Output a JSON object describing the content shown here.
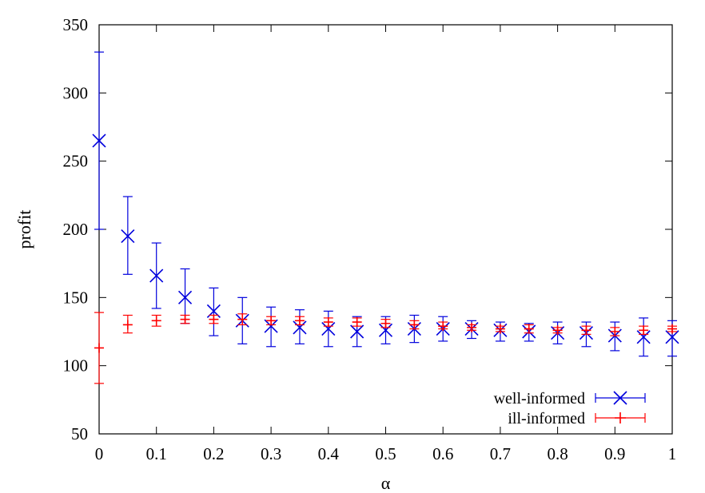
{
  "chart_data": {
    "type": "scatter",
    "title": "",
    "xlabel": "α",
    "ylabel": "profit",
    "xlim": [
      0,
      1
    ],
    "ylim": [
      50,
      350
    ],
    "xticks": [
      0,
      0.1,
      0.2,
      0.3,
      0.4,
      0.5,
      0.6,
      0.7,
      0.8,
      0.9,
      1
    ],
    "xtick_labels": [
      "0",
      "0.1",
      "0.2",
      "0.3",
      "0.4",
      "0.5",
      "0.6",
      "0.7",
      "0.8",
      "0.9",
      "1"
    ],
    "yticks": [
      50,
      100,
      150,
      200,
      250,
      300,
      350
    ],
    "ytick_labels": [
      "50",
      "100",
      "150",
      "200",
      "250",
      "300",
      "350"
    ],
    "grid": false,
    "legend_position": "bottom-right",
    "error_bars": true,
    "series": [
      {
        "name": "well-informed",
        "color": "#0000dd",
        "marker": "x",
        "x": [
          0,
          0.05,
          0.1,
          0.15,
          0.2,
          0.25,
          0.3,
          0.35,
          0.4,
          0.45,
          0.5,
          0.55,
          0.6,
          0.65,
          0.7,
          0.75,
          0.8,
          0.85,
          0.9,
          0.95,
          1
        ],
        "y": [
          265,
          195,
          166,
          150,
          140,
          133,
          129,
          128,
          127,
          125,
          126,
          127,
          127,
          127,
          126,
          125,
          124,
          124,
          122,
          121,
          121
        ],
        "err_low": [
          200,
          167,
          142,
          131,
          122,
          116,
          114,
          116,
          114,
          114,
          116,
          117,
          118,
          120,
          118,
          118,
          116,
          114,
          111,
          107,
          107
        ],
        "err_high": [
          330,
          224,
          190,
          171,
          157,
          150,
          143,
          141,
          140,
          136,
          136,
          137,
          136,
          133,
          132,
          131,
          132,
          132,
          132,
          135,
          133
        ]
      },
      {
        "name": "ill-informed",
        "color": "#ff0000",
        "marker": "+",
        "x": [
          0,
          0.05,
          0.1,
          0.15,
          0.2,
          0.25,
          0.3,
          0.35,
          0.4,
          0.45,
          0.5,
          0.55,
          0.6,
          0.65,
          0.7,
          0.75,
          0.8,
          0.85,
          0.9,
          0.95,
          1
        ],
        "y": [
          113,
          130,
          133,
          134,
          134,
          134,
          133,
          133,
          132,
          132,
          131,
          130,
          129,
          128,
          127,
          127,
          126,
          126,
          125,
          126,
          127
        ],
        "err_low": [
          87,
          124,
          129,
          131,
          131,
          130,
          130,
          130,
          129,
          129,
          128,
          127,
          127,
          126,
          125,
          124,
          124,
          123,
          122,
          123,
          125
        ],
        "err_high": [
          139,
          137,
          137,
          137,
          137,
          138,
          136,
          136,
          135,
          135,
          134,
          133,
          132,
          130,
          129,
          130,
          128,
          129,
          128,
          129,
          129
        ]
      }
    ]
  }
}
